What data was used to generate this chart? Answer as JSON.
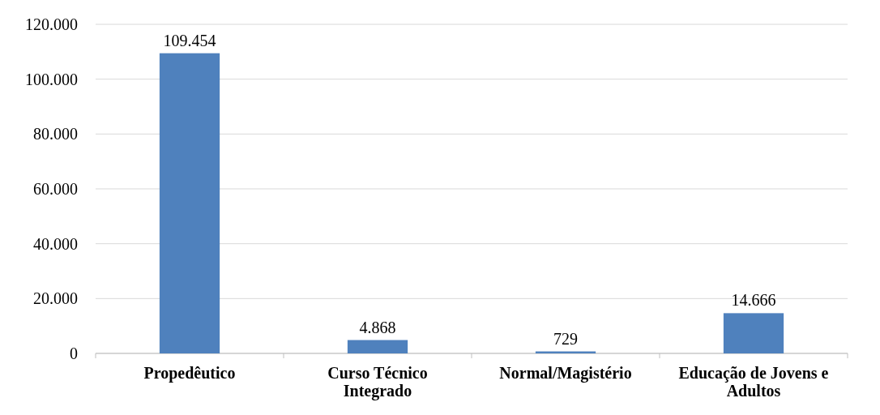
{
  "chart_data": {
    "type": "bar",
    "categories": [
      "Propedêutico",
      "Curso Técnico Integrado",
      "Normal/Magistério",
      "Educação de Jovens e Adultos"
    ],
    "values": [
      109454,
      4868,
      729,
      14666
    ],
    "value_labels": [
      "109.454",
      "4.868",
      "729",
      "14.666"
    ],
    "color": "#4f81bd",
    "ylim": [
      0,
      120000
    ],
    "yticks": [
      {
        "value": 0,
        "label": "0"
      },
      {
        "value": 20000,
        "label": "20.000"
      },
      {
        "value": 40000,
        "label": "40.000"
      },
      {
        "value": 60000,
        "label": "60.000"
      },
      {
        "value": 80000,
        "label": "80.000"
      },
      {
        "value": 100000,
        "label": "100.000"
      },
      {
        "value": 120000,
        "label": "120.000"
      }
    ],
    "grid": "y"
  }
}
